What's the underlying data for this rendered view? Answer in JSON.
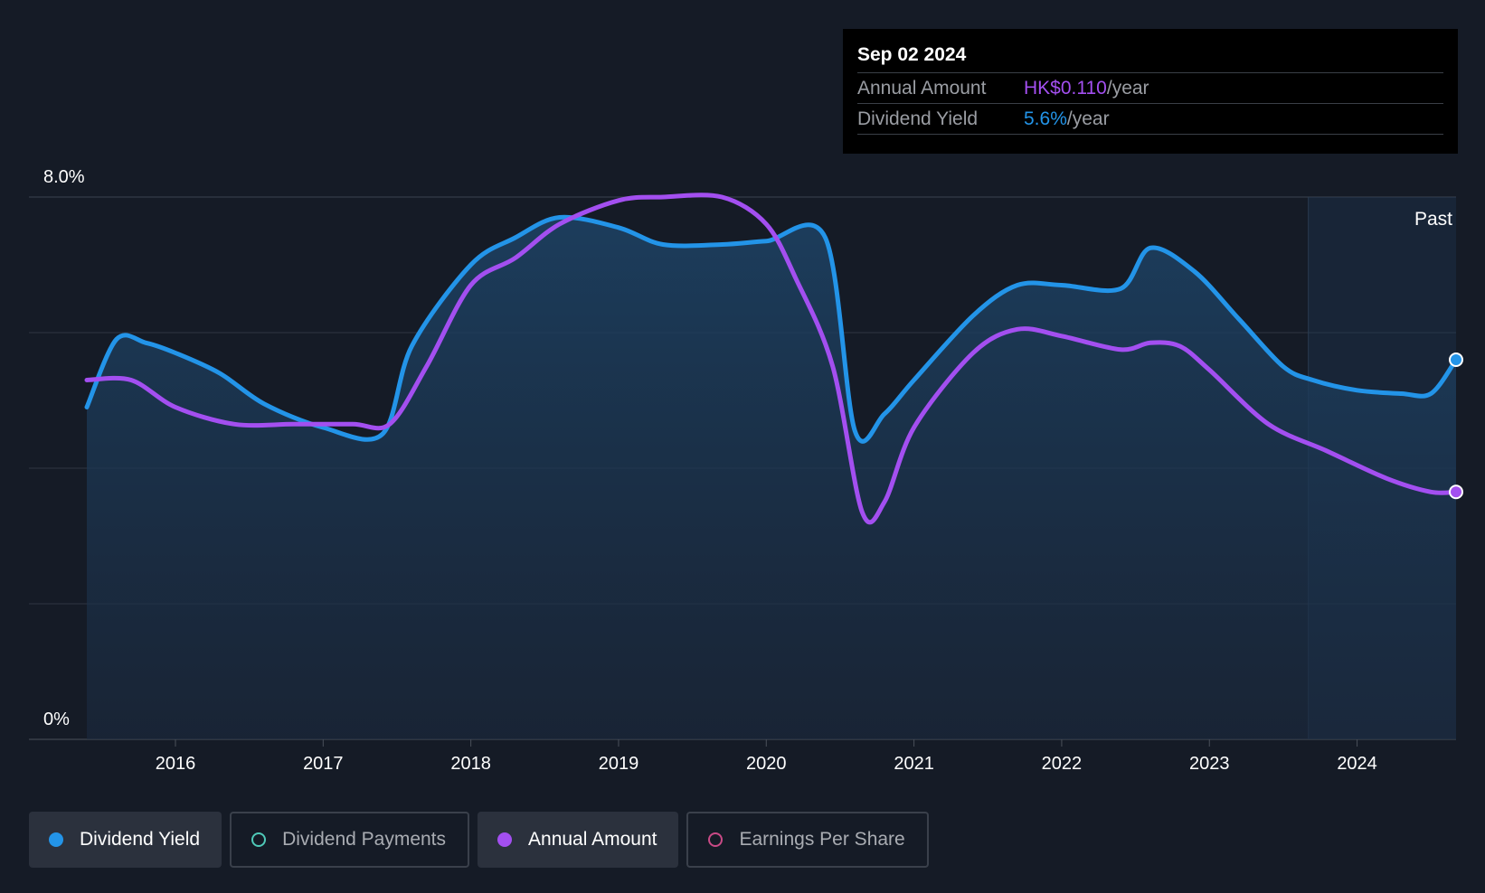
{
  "tooltip": {
    "date": "Sep 02 2024",
    "rows": [
      {
        "label": "Annual Amount",
        "value": "HK$0.110",
        "unit": "/year"
      },
      {
        "label": "Dividend Yield",
        "value": "5.6%",
        "unit": "/year"
      }
    ]
  },
  "legend": [
    {
      "label": "Dividend Yield",
      "color": "#2394e8",
      "active": true,
      "filled": true
    },
    {
      "label": "Dividend Payments",
      "color": "#4fc9b8",
      "active": false,
      "filled": false
    },
    {
      "label": "Annual Amount",
      "color": "#a34ff0",
      "active": true,
      "filled": true
    },
    {
      "label": "Earnings Per Share",
      "color": "#c94a86",
      "active": false,
      "filled": false
    }
  ],
  "chart_data": {
    "type": "line",
    "y_tick_labels": [
      "0%",
      "8.0%"
    ],
    "ylim": [
      0,
      8
    ],
    "xlim": [
      2015.4,
      2024.67
    ],
    "x_tick_labels": [
      "2016",
      "2017",
      "2018",
      "2019",
      "2020",
      "2021",
      "2022",
      "2023",
      "2024"
    ],
    "x_ticks": [
      2016,
      2017,
      2018,
      2019,
      2020,
      2021,
      2022,
      2023,
      2024
    ],
    "past_region_label": "Past",
    "past_region_start": 2023.67,
    "grid": true,
    "series": [
      {
        "name": "Dividend Yield",
        "color": "#2394e8",
        "area": true,
        "x": [
          2015.4,
          2015.6,
          2015.8,
          2016.0,
          2016.3,
          2016.6,
          2017.0,
          2017.4,
          2017.6,
          2018.0,
          2018.3,
          2018.6,
          2019.0,
          2019.3,
          2019.7,
          2020.0,
          2020.4,
          2020.6,
          2020.8,
          2021.0,
          2021.4,
          2021.7,
          2022.0,
          2022.4,
          2022.6,
          2022.9,
          2023.2,
          2023.5,
          2023.7,
          2024.0,
          2024.3,
          2024.5,
          2024.67
        ],
        "y": [
          4.9,
          5.9,
          5.85,
          5.7,
          5.4,
          4.95,
          4.6,
          4.5,
          5.8,
          7.0,
          7.4,
          7.7,
          7.55,
          7.3,
          7.3,
          7.35,
          7.4,
          4.55,
          4.8,
          5.3,
          6.25,
          6.7,
          6.7,
          6.65,
          7.25,
          6.9,
          6.2,
          5.5,
          5.3,
          5.15,
          5.1,
          5.1,
          5.6
        ]
      },
      {
        "name": "Annual Amount",
        "color": "#a34ff0",
        "area": false,
        "x": [
          2015.4,
          2015.7,
          2016.0,
          2016.4,
          2016.8,
          2017.2,
          2017.45,
          2017.7,
          2018.0,
          2018.3,
          2018.6,
          2019.0,
          2019.3,
          2019.7,
          2020.0,
          2020.2,
          2020.45,
          2020.65,
          2020.8,
          2021.0,
          2021.4,
          2021.7,
          2022.0,
          2022.4,
          2022.6,
          2022.8,
          2023.0,
          2023.4,
          2023.8,
          2024.2,
          2024.5,
          2024.67
        ],
        "y": [
          5.3,
          5.3,
          4.9,
          4.65,
          4.65,
          4.65,
          4.65,
          5.5,
          6.7,
          7.1,
          7.6,
          7.95,
          8.0,
          8.0,
          7.6,
          6.8,
          5.5,
          3.35,
          3.5,
          4.6,
          5.7,
          6.05,
          5.95,
          5.75,
          5.85,
          5.8,
          5.45,
          4.65,
          4.25,
          3.85,
          3.65,
          3.65
        ]
      }
    ]
  }
}
